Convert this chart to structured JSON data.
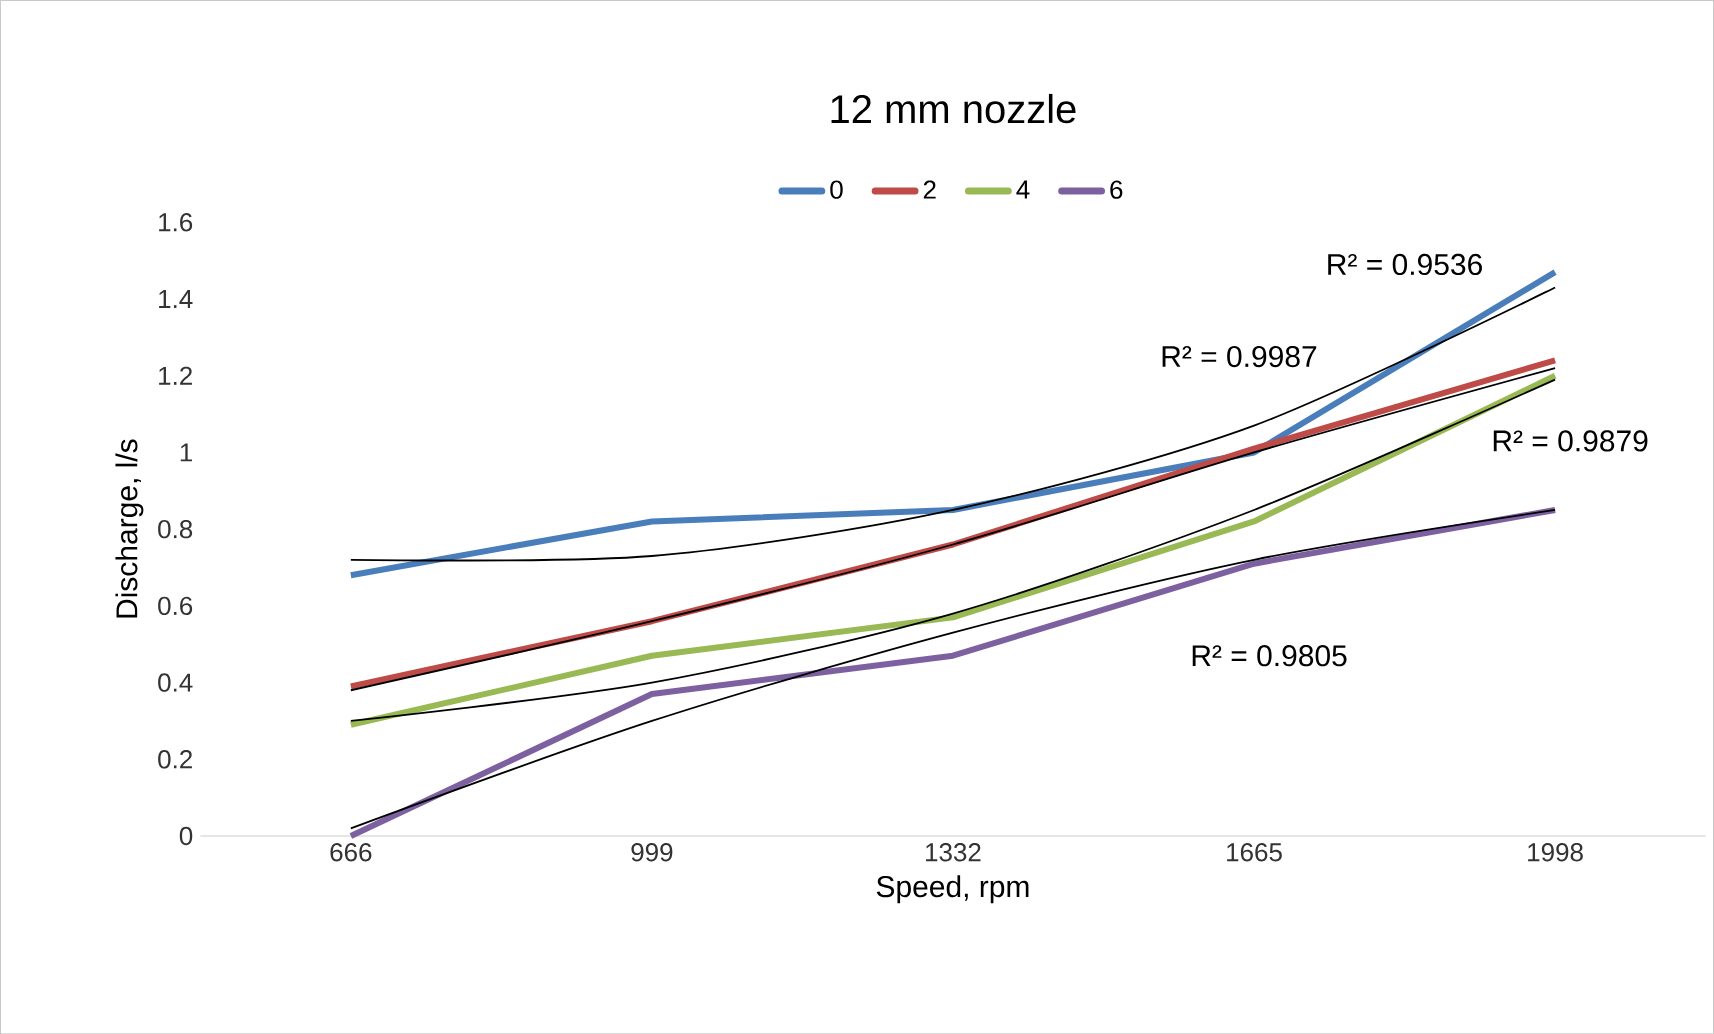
{
  "chart_data": {
    "type": "line",
    "title": "12 mm nozzle",
    "xlabel": "Speed, rpm",
    "ylabel": "Discharge, l/s",
    "categories": [
      "666",
      "999",
      "1332",
      "1665",
      "1998"
    ],
    "series": [
      {
        "name": "0",
        "color": "#4a7ebb",
        "values": [
          0.68,
          0.82,
          0.85,
          1.0,
          1.47
        ]
      },
      {
        "name": "2",
        "color": "#be4b48",
        "values": [
          0.39,
          0.56,
          0.76,
          1.01,
          1.24
        ]
      },
      {
        "name": "4",
        "color": "#98b954",
        "values": [
          0.29,
          0.47,
          0.57,
          0.82,
          1.2
        ]
      },
      {
        "name": "6",
        "color": "#7d60a0",
        "values": [
          0.0,
          0.37,
          0.47,
          0.71,
          0.85
        ]
      },
      {
        "color": "#000000",
        "values": [
          0.72,
          0.73,
          0.85,
          1.07,
          1.43
        ]
      },
      {
        "color": "#000000",
        "values": [
          0.38,
          0.56,
          0.76,
          1.0,
          1.22
        ]
      },
      {
        "color": "#000000",
        "values": [
          0.3,
          0.4,
          0.58,
          0.85,
          1.19
        ]
      },
      {
        "color": "#000000",
        "values": [
          0.02,
          0.3,
          0.53,
          0.72,
          0.85
        ]
      }
    ],
    "ylim": [
      0,
      1.6
    ],
    "yticks": [
      0,
      0.2,
      0.4,
      0.6,
      0.8,
      1,
      1.2,
      1.4,
      1.6
    ],
    "legend": "top",
    "grid": false,
    "annotations": [
      "R² = 0.9536",
      "R² = 0.9987",
      "R² = 0.9879",
      "R² = 0.9805"
    ]
  }
}
